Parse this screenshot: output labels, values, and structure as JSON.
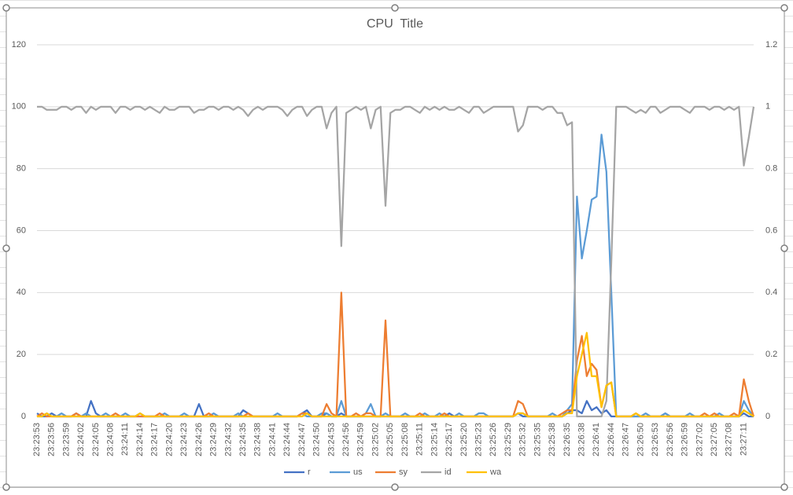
{
  "chart_data": {
    "type": "line",
    "title": "CPU  Title",
    "categories": [
      "23:23:53",
      null,
      null,
      "23:23:56",
      null,
      null,
      "23:23:59",
      null,
      null,
      "23:24:02",
      null,
      null,
      "23:24:05",
      null,
      null,
      "23:24:08",
      null,
      null,
      "23:24:11",
      null,
      null,
      "23:24:14",
      null,
      null,
      "23:24:17",
      null,
      null,
      "23:24:20",
      null,
      null,
      "23:24:23",
      null,
      null,
      "23:24:26",
      null,
      null,
      "23:24:29",
      null,
      null,
      "23:24:32",
      null,
      null,
      "23:24:35",
      null,
      null,
      "23:24:38",
      null,
      null,
      "23:24:41",
      null,
      null,
      "23:24:44",
      null,
      null,
      "23:24:47",
      null,
      null,
      "23:24:50",
      null,
      null,
      "23:24:53",
      null,
      null,
      "23:24:56",
      null,
      null,
      "23:24:59",
      null,
      null,
      "23:25:02",
      null,
      null,
      "23:25:05",
      null,
      null,
      "23:25:08",
      null,
      null,
      "23:25:11",
      null,
      null,
      "23:25:14",
      null,
      null,
      "23:25:17",
      null,
      null,
      "23:25:20",
      null,
      null,
      "23:25:23",
      null,
      null,
      "23:25:26",
      null,
      null,
      "23:25:29",
      null,
      null,
      "23:25:32",
      null,
      null,
      "23:25:35",
      null,
      null,
      "23:25:38",
      null,
      null,
      "23:26:35",
      null,
      null,
      "23:26:38",
      null,
      null,
      "23:26:41",
      null,
      null,
      "23:26:44",
      null,
      null,
      "23:26:47",
      null,
      null,
      "23:26:50",
      null,
      null,
      "23:26:53",
      null,
      null,
      "23:26:56",
      null,
      null,
      "23:26:59",
      null,
      null,
      "23:27:02",
      null,
      null,
      "23:27:05",
      null,
      null,
      "23:27:08",
      null,
      null,
      "23:27:11",
      null,
      null
    ],
    "series": [
      {
        "name": "r",
        "color": "#4472c4",
        "values": [
          1,
          0,
          0,
          1,
          0,
          0,
          0,
          0,
          1,
          0,
          0,
          5,
          1,
          0,
          0,
          0,
          0,
          0,
          0,
          0,
          0,
          0,
          0,
          0,
          0,
          0,
          0,
          0,
          0,
          0,
          0,
          0,
          0,
          4,
          0,
          0,
          0,
          0,
          0,
          0,
          0,
          0,
          2,
          1,
          0,
          0,
          0,
          0,
          0,
          0,
          0,
          0,
          0,
          0,
          1,
          2,
          0,
          0,
          0,
          1,
          0,
          0,
          1,
          0,
          0,
          0,
          0,
          0,
          0,
          0,
          0,
          0,
          0,
          0,
          0,
          0,
          0,
          0,
          0,
          0,
          0,
          0,
          0,
          0,
          1,
          0,
          0,
          0,
          0,
          0,
          0,
          0,
          0,
          0,
          0,
          0,
          0,
          0,
          1,
          0,
          0,
          0,
          0,
          0,
          0,
          0,
          0,
          0,
          1,
          2,
          2,
          1,
          5,
          2,
          3,
          1,
          2,
          0,
          0,
          0,
          0,
          0,
          0,
          0,
          0,
          0,
          0,
          0,
          1,
          0,
          0,
          0,
          0,
          0,
          0,
          0,
          0,
          0,
          0,
          0,
          0,
          0,
          0,
          0,
          1,
          0,
          0
        ]
      },
      {
        "name": "us",
        "color": "#5b9bd5",
        "values": [
          0,
          0,
          1,
          0,
          0,
          1,
          0,
          0,
          0,
          0,
          1,
          0,
          0,
          0,
          1,
          0,
          0,
          0,
          1,
          0,
          0,
          1,
          0,
          0,
          0,
          0,
          1,
          0,
          0,
          0,
          1,
          0,
          0,
          0,
          0,
          0,
          1,
          0,
          0,
          0,
          0,
          1,
          0,
          0,
          0,
          0,
          0,
          0,
          0,
          1,
          0,
          0,
          0,
          0,
          1,
          0,
          0,
          0,
          1,
          1,
          0,
          0,
          5,
          0,
          0,
          0,
          0,
          1,
          4,
          0,
          0,
          1,
          0,
          0,
          0,
          1,
          0,
          0,
          0,
          1,
          0,
          0,
          1,
          0,
          0,
          0,
          1,
          0,
          0,
          0,
          1,
          1,
          0,
          0,
          0,
          0,
          0,
          0,
          1,
          1,
          0,
          0,
          0,
          0,
          0,
          1,
          0,
          0,
          2,
          4,
          71,
          51,
          60,
          70,
          71,
          91,
          79,
          40,
          0,
          0,
          0,
          0,
          0,
          0,
          1,
          0,
          0,
          0,
          1,
          0,
          0,
          0,
          0,
          1,
          0,
          0,
          0,
          0,
          0,
          1,
          0,
          0,
          0,
          0,
          5,
          2,
          0
        ]
      },
      {
        "name": "sy",
        "color": "#ed7d31",
        "values": [
          0,
          1,
          0,
          0,
          0,
          0,
          0,
          0,
          1,
          0,
          0,
          0,
          0,
          0,
          0,
          0,
          1,
          0,
          0,
          0,
          0,
          0,
          0,
          0,
          0,
          1,
          0,
          0,
          0,
          0,
          0,
          0,
          0,
          0,
          0,
          1,
          0,
          0,
          0,
          0,
          0,
          0,
          0,
          1,
          0,
          0,
          0,
          0,
          0,
          0,
          0,
          0,
          0,
          0,
          1,
          1,
          0,
          0,
          0,
          4,
          1,
          0,
          40,
          0,
          0,
          1,
          0,
          1,
          1,
          0,
          0,
          31,
          0,
          0,
          0,
          0,
          0,
          0,
          1,
          0,
          0,
          0,
          0,
          1,
          0,
          0,
          0,
          0,
          0,
          0,
          0,
          0,
          0,
          0,
          0,
          0,
          0,
          0,
          5,
          4,
          0,
          0,
          0,
          0,
          0,
          0,
          0,
          1,
          2,
          2,
          18,
          26,
          13,
          17,
          15,
          3,
          10,
          11,
          0,
          0,
          0,
          0,
          1,
          0,
          0,
          0,
          0,
          0,
          0,
          0,
          0,
          0,
          0,
          0,
          0,
          0,
          1,
          0,
          1,
          0,
          0,
          0,
          1,
          0,
          12,
          5,
          0
        ]
      },
      {
        "name": "id",
        "color": "#a5a5a5",
        "values": [
          100,
          100,
          99,
          99,
          99,
          100,
          100,
          99,
          100,
          100,
          98,
          100,
          99,
          100,
          100,
          100,
          98,
          100,
          100,
          99,
          100,
          100,
          99,
          100,
          99,
          98,
          100,
          99,
          99,
          100,
          100,
          100,
          98,
          99,
          99,
          100,
          100,
          99,
          100,
          100,
          99,
          100,
          99,
          97,
          99,
          100,
          99,
          100,
          100,
          100,
          99,
          97,
          99,
          100,
          100,
          97,
          99,
          100,
          100,
          93,
          98,
          100,
          55,
          98,
          99,
          100,
          99,
          100,
          93,
          99,
          100,
          68,
          98,
          99,
          99,
          100,
          100,
          99,
          98,
          100,
          99,
          100,
          99,
          100,
          99,
          99,
          100,
          99,
          98,
          100,
          100,
          98,
          99,
          100,
          100,
          100,
          100,
          100,
          92,
          94,
          100,
          100,
          100,
          99,
          100,
          100,
          98,
          98,
          94,
          95,
          0,
          0,
          0,
          0,
          0,
          0,
          5,
          50,
          100,
          100,
          100,
          99,
          98,
          99,
          98,
          100,
          100,
          98,
          99,
          100,
          100,
          100,
          99,
          98,
          100,
          100,
          100,
          99,
          100,
          100,
          99,
          100,
          99,
          100,
          81,
          90,
          100
        ]
      },
      {
        "name": "wa",
        "color": "#ffc000",
        "values": [
          0,
          0,
          1,
          0,
          0,
          0,
          0,
          0,
          0,
          0,
          0,
          0,
          0,
          0,
          0,
          0,
          0,
          0,
          0,
          0,
          0,
          1,
          0,
          0,
          0,
          0,
          0,
          0,
          0,
          0,
          0,
          0,
          0,
          0,
          0,
          0,
          0,
          0,
          0,
          0,
          0,
          0,
          0,
          0,
          0,
          0,
          0,
          0,
          0,
          0,
          0,
          0,
          0,
          0,
          0,
          1,
          0,
          0,
          0,
          0,
          0,
          0,
          0,
          0,
          0,
          0,
          0,
          0,
          0,
          0,
          0,
          0,
          0,
          0,
          0,
          0,
          0,
          0,
          0,
          0,
          0,
          0,
          0,
          0,
          0,
          0,
          0,
          0,
          0,
          0,
          0,
          0,
          0,
          0,
          0,
          0,
          0,
          0,
          1,
          1,
          0,
          0,
          0,
          0,
          0,
          0,
          0,
          0,
          1,
          1,
          13,
          20,
          27,
          13,
          13,
          3,
          10,
          11,
          0,
          0,
          0,
          0,
          1,
          0,
          0,
          0,
          0,
          0,
          0,
          0,
          0,
          0,
          0,
          0,
          0,
          0,
          0,
          0,
          0,
          0,
          0,
          0,
          0,
          0,
          2,
          1,
          0
        ]
      }
    ],
    "ylim": [
      0,
      120
    ],
    "yticks": [
      0,
      20,
      40,
      60,
      80,
      100,
      120
    ],
    "y2lim": [
      0,
      1.2
    ],
    "y2ticks": [
      0,
      0.2,
      0.4,
      0.6,
      0.8,
      1,
      1.2
    ],
    "grid": true,
    "legend": "bottom"
  }
}
